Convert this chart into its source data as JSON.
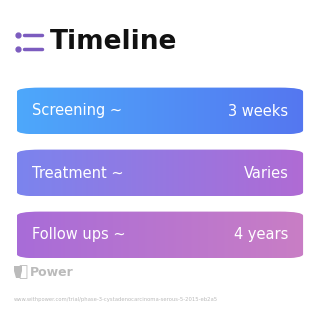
{
  "title": "Timeline",
  "background_color": "#ffffff",
  "rows": [
    {
      "label": "Screening ~",
      "value": "3 weeks",
      "color_left": "#4da8fb",
      "color_right": "#5577f0"
    },
    {
      "label": "Treatment ~",
      "value": "Varies",
      "color_left": "#7b84ee",
      "color_right": "#b06bd4"
    },
    {
      "label": "Follow ups ~",
      "value": "4 years",
      "color_left": "#a86cd8",
      "color_right": "#c97ec5"
    }
  ],
  "icon_color": "#7c5cbf",
  "title_fontsize": 19,
  "label_fontsize": 10.5,
  "footer_text": "Power",
  "footer_color": "#bbbbbb",
  "url_text": "www.withpower.com/trial/phase-3-cystadenocarcinoma-serous-5-2015-eb2a5",
  "url_color": "#bbbbbb",
  "fig_width": 3.2,
  "fig_height": 3.27,
  "dpi": 100
}
